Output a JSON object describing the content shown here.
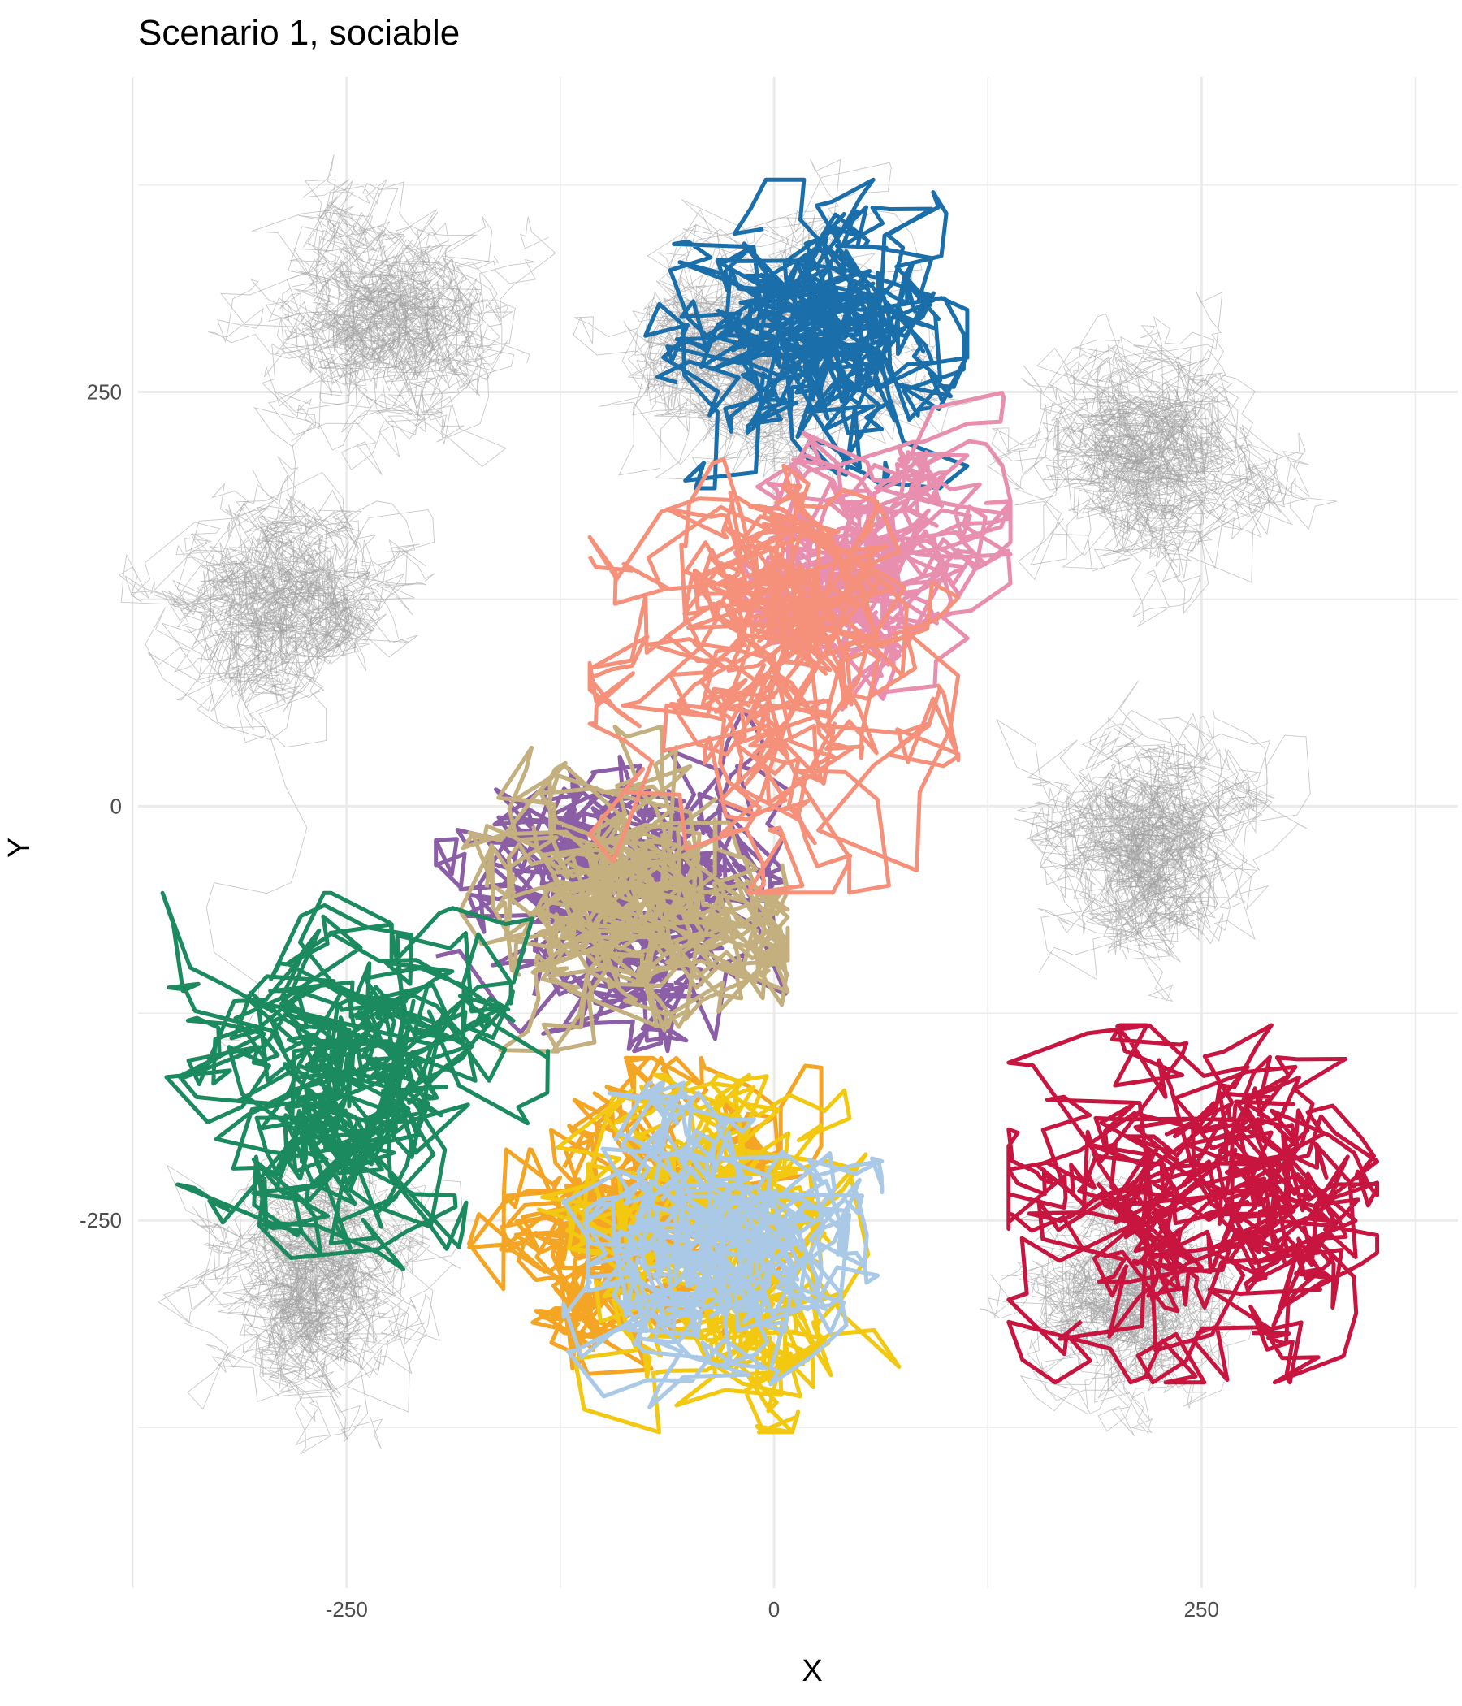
{
  "chart_data": {
    "type": "line",
    "title": "Scenario 1, sociable",
    "xlabel": "X",
    "ylabel": "Y",
    "xlim": [
      -372,
      400
    ],
    "ylim": [
      -472,
      440
    ],
    "x_ticks": [
      -250,
      0,
      250
    ],
    "x_tick_labels": [
      "-250",
      "0",
      "250"
    ],
    "y_ticks": [
      -250,
      0,
      250
    ],
    "y_tick_labels": [
      "-250",
      "0",
      "250"
    ],
    "grid": true,
    "background_tracks": {
      "color": "#9a9a9a",
      "clusters": [
        {
          "cx": -290,
          "cy": 120,
          "rx": 90,
          "ry": 190
        },
        {
          "cx": 220,
          "cy": 215,
          "rx": 95,
          "ry": 120
        },
        {
          "cx": 220,
          "cy": -25,
          "rx": 95,
          "ry": 115
        },
        {
          "cx": -230,
          "cy": 290,
          "rx": 90,
          "ry": 90
        },
        {
          "cx": -10,
          "cy": 280,
          "rx": 120,
          "ry": 110
        },
        {
          "cx": -270,
          "cy": -290,
          "rx": 90,
          "ry": 120
        },
        {
          "cx": 210,
          "cy": -300,
          "rx": 80,
          "ry": 120
        }
      ]
    },
    "series": [
      {
        "color": "#1a6faa",
        "center": [
          15,
          285
        ],
        "spread": [
          100,
          95
        ]
      },
      {
        "color": "#e88fb0",
        "center": [
          55,
          140
        ],
        "spread": [
          85,
          120
        ]
      },
      {
        "color": "#8b5ea6",
        "center": [
          -90,
          -40
        ],
        "spread": [
          110,
          110
        ]
      },
      {
        "color": "#c4b07e",
        "center": [
          -90,
          -50
        ],
        "spread": [
          100,
          100
        ]
      },
      {
        "color": "#f5917a",
        "center": [
          0,
          85
        ],
        "spread": [
          110,
          140
        ]
      },
      {
        "color": "#1b8a5e",
        "center": [
          -245,
          -170
        ],
        "spread": [
          115,
          120
        ]
      },
      {
        "color": "#f5a524",
        "center": [
          -90,
          -250
        ],
        "spread": [
          120,
          100
        ]
      },
      {
        "color": "#f2c811",
        "center": [
          -20,
          -270
        ],
        "spread": [
          120,
          110
        ]
      },
      {
        "color": "#a9c9e6",
        "center": [
          -30,
          -265
        ],
        "spread": [
          95,
          100
        ]
      },
      {
        "color": "#c8153f",
        "center": [
          245,
          -240
        ],
        "spread": [
          110,
          110
        ]
      }
    ]
  }
}
